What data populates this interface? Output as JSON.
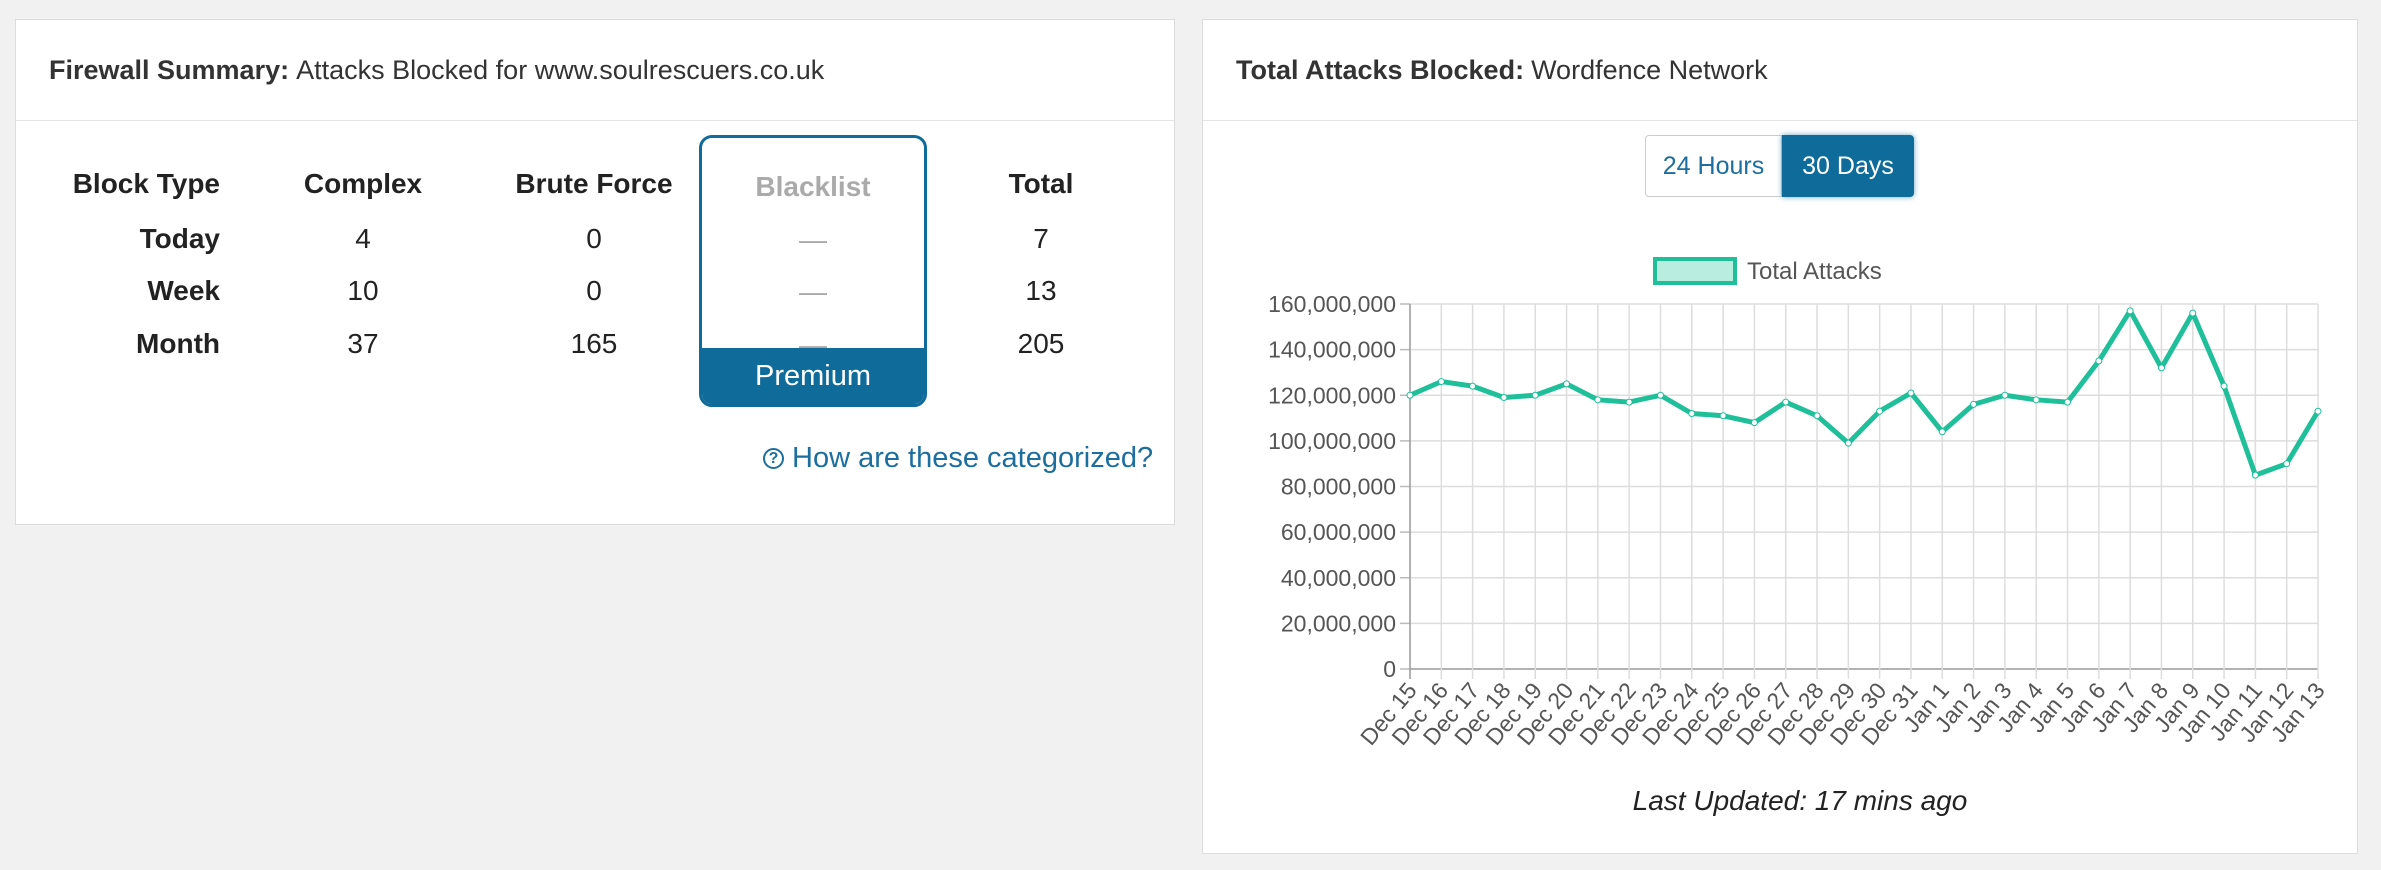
{
  "left_panel": {
    "title_bold": "Firewall Summary:",
    "title_rest": "Attacks Blocked for www.soulrescuers.co.uk",
    "headers": [
      "Block Type",
      "Complex",
      "Brute Force",
      "Blacklist",
      "Total"
    ],
    "rows": [
      {
        "label": "Today",
        "complex": "4",
        "brute": "0",
        "blacklist": "—",
        "total": "7"
      },
      {
        "label": "Week",
        "complex": "10",
        "brute": "0",
        "blacklist": "—",
        "total": "13"
      },
      {
        "label": "Month",
        "complex": "37",
        "brute": "165",
        "blacklist": "—",
        "total": "205"
      }
    ],
    "premium_label": "Premium",
    "help_link": "How are these categorized?"
  },
  "right_panel": {
    "title_bold": "Total Attacks Blocked:",
    "title_rest": "Wordfence Network",
    "toggle_24h": "24 Hours",
    "toggle_30d": "30 Days",
    "active_toggle": "30 Days",
    "last_updated": "Last Updated: 17 mins ago"
  },
  "colors": {
    "accent": "#0f6b99",
    "line": "#1fbf9a",
    "legend_fill": "#b8ede0"
  },
  "chart_data": {
    "type": "line",
    "legend": [
      "Total Attacks"
    ],
    "legend_position": "top",
    "grid": true,
    "ylim": [
      0,
      160000000
    ],
    "yticks": [
      "0",
      "20,000,000",
      "40,000,000",
      "60,000,000",
      "80,000,000",
      "100,000,000",
      "120,000,000",
      "140,000,000",
      "160,000,000"
    ],
    "categories": [
      "Dec 15",
      "Dec 16",
      "Dec 17",
      "Dec 18",
      "Dec 19",
      "Dec 20",
      "Dec 21",
      "Dec 22",
      "Dec 23",
      "Dec 24",
      "Dec 25",
      "Dec 26",
      "Dec 27",
      "Dec 28",
      "Dec 29",
      "Dec 30",
      "Dec 31",
      "Jan 1",
      "Jan 2",
      "Jan 3",
      "Jan 4",
      "Jan 5",
      "Jan 6",
      "Jan 7",
      "Jan 8",
      "Jan 9",
      "Jan 10",
      "Jan 11",
      "Jan 12",
      "Jan 13"
    ],
    "series": [
      {
        "name": "Total Attacks",
        "values": [
          120000000,
          126000000,
          124000000,
          119000000,
          120000000,
          125000000,
          118000000,
          117000000,
          120000000,
          112000000,
          111000000,
          108000000,
          117000000,
          111000000,
          99000000,
          113000000,
          121000000,
          104000000,
          116000000,
          120000000,
          118000000,
          117000000,
          135000000,
          157000000,
          132000000,
          156000000,
          124000000,
          85000000,
          90000000,
          113000000
        ]
      }
    ]
  }
}
